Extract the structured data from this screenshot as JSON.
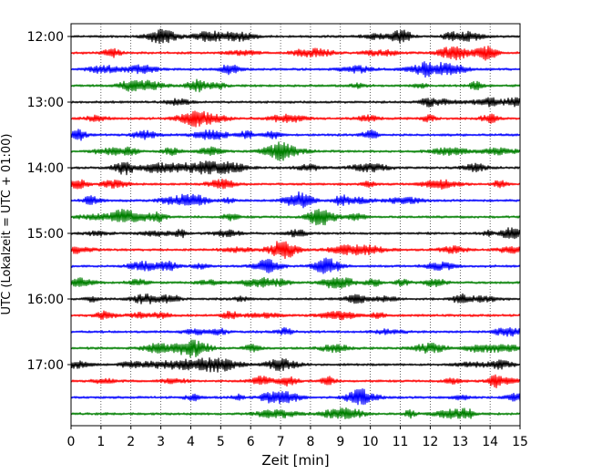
{
  "chart_data": {
    "type": "line",
    "title": "",
    "xlabel": "Zeit  [min]",
    "ylabel": "UTC (Lokalzeit = UTC + 01:00)",
    "xlim": [
      0,
      15
    ],
    "x_ticks": [
      "0",
      "1",
      "2",
      "3",
      "4",
      "5",
      "6",
      "7",
      "8",
      "9",
      "10",
      "11",
      "12",
      "13",
      "14",
      "15"
    ],
    "y_ticks": [
      "12:00",
      "13:00",
      "14:00",
      "15:00",
      "16:00",
      "17:00"
    ],
    "grid": "vertical dotted at each minute",
    "trace_interval_minutes": 15,
    "trace_start": "12:00",
    "trace_colors": [
      "#000000",
      "#ff0000",
      "#0000ff",
      "#007f00"
    ],
    "traces": [
      {
        "time": "12:00",
        "color": "#000000"
      },
      {
        "time": "12:15",
        "color": "#ff0000"
      },
      {
        "time": "12:30",
        "color": "#0000ff"
      },
      {
        "time": "12:45",
        "color": "#007f00"
      },
      {
        "time": "13:00",
        "color": "#000000"
      },
      {
        "time": "13:15",
        "color": "#ff0000"
      },
      {
        "time": "13:30",
        "color": "#0000ff"
      },
      {
        "time": "13:45",
        "color": "#007f00"
      },
      {
        "time": "14:00",
        "color": "#000000"
      },
      {
        "time": "14:15",
        "color": "#ff0000"
      },
      {
        "time": "14:30",
        "color": "#0000ff"
      },
      {
        "time": "14:45",
        "color": "#007f00"
      },
      {
        "time": "15:00",
        "color": "#000000"
      },
      {
        "time": "15:15",
        "color": "#ff0000"
      },
      {
        "time": "15:30",
        "color": "#0000ff"
      },
      {
        "time": "15:45",
        "color": "#007f00"
      },
      {
        "time": "16:00",
        "color": "#000000"
      },
      {
        "time": "16:15",
        "color": "#ff0000"
      },
      {
        "time": "16:30",
        "color": "#0000ff"
      },
      {
        "time": "16:45",
        "color": "#007f00"
      },
      {
        "time": "17:00",
        "color": "#000000"
      },
      {
        "time": "17:15",
        "color": "#ff0000"
      },
      {
        "time": "17:30",
        "color": "#0000ff"
      },
      {
        "time": "17:45",
        "color": "#007f00"
      }
    ]
  }
}
